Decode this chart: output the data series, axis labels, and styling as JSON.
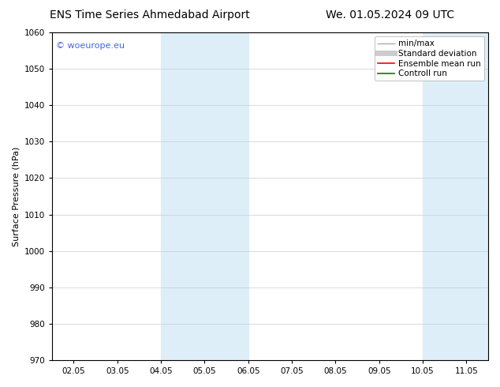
{
  "title_left": "ENS Time Series Ahmedabad Airport",
  "title_right": "We. 01.05.2024 09 UTC",
  "ylabel": "Surface Pressure (hPa)",
  "ylim": [
    970,
    1060
  ],
  "yticks": [
    970,
    980,
    990,
    1000,
    1010,
    1020,
    1030,
    1040,
    1050,
    1060
  ],
  "xtick_labels": [
    "02.05",
    "03.05",
    "04.05",
    "05.05",
    "06.05",
    "07.05",
    "08.05",
    "09.05",
    "10.05",
    "11.05"
  ],
  "xtick_positions": [
    0,
    1,
    2,
    3,
    4,
    5,
    6,
    7,
    8,
    9
  ],
  "xlim": [
    -0.5,
    9.5
  ],
  "shaded_bands": [
    {
      "x_start": 2.0,
      "x_end": 4.0
    },
    {
      "x_start": 8.0,
      "x_end": 9.5
    }
  ],
  "shade_color": "#ddeef8",
  "background_color": "#ffffff",
  "watermark_text": "© woeurope.eu",
  "watermark_color": "#4169e1",
  "legend_items": [
    {
      "label": "min/max",
      "color": "#aaaaaa",
      "linewidth": 1.0,
      "linestyle": "-"
    },
    {
      "label": "Standard deviation",
      "color": "#cccccc",
      "linewidth": 5,
      "linestyle": "-"
    },
    {
      "label": "Ensemble mean run",
      "color": "#ff0000",
      "linewidth": 1.2,
      "linestyle": "-"
    },
    {
      "label": "Controll run",
      "color": "#008000",
      "linewidth": 1.2,
      "linestyle": "-"
    }
  ],
  "title_fontsize": 10,
  "axis_fontsize": 8,
  "tick_fontsize": 7.5,
  "legend_fontsize": 7.5
}
